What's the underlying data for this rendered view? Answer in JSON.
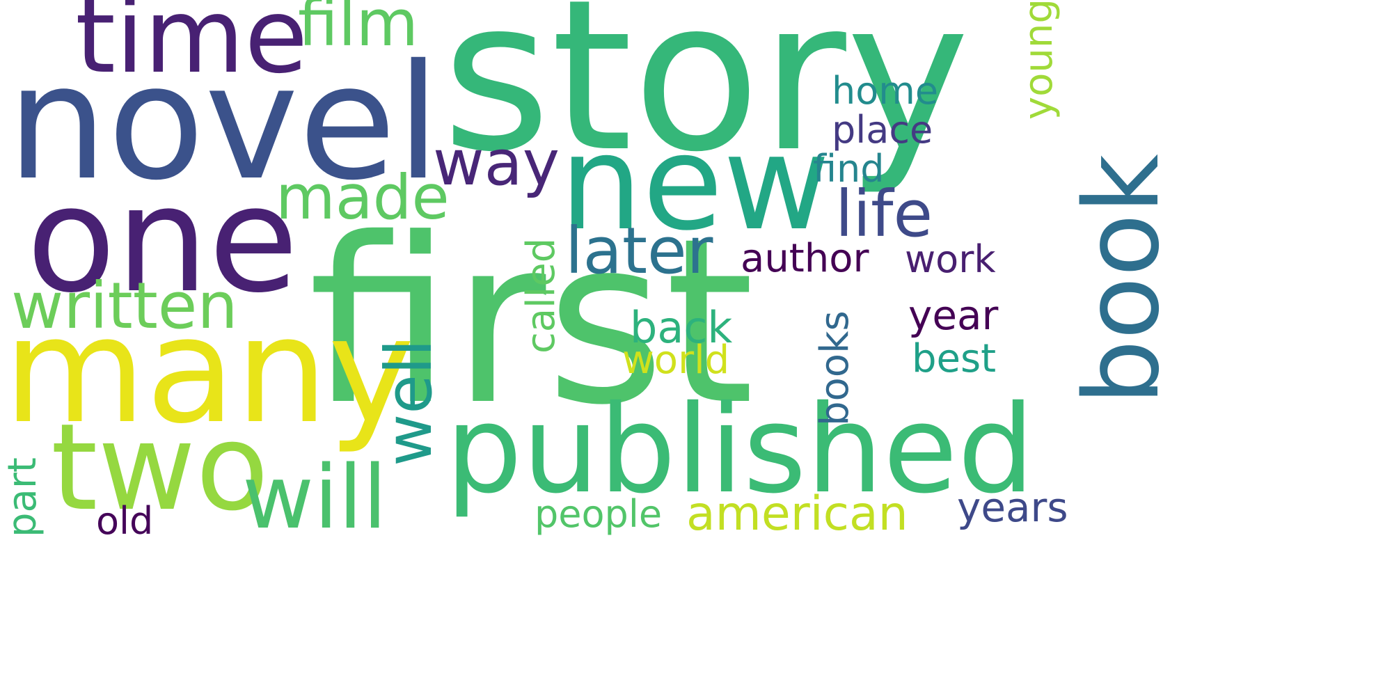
{
  "words": [
    {
      "id": "story",
      "text": "story",
      "color": "#35b779",
      "orientation": "horizontal"
    },
    {
      "id": "first",
      "text": "first",
      "color": "#4ec36b",
      "orientation": "horizontal"
    },
    {
      "id": "novel",
      "text": "novel",
      "color": "#3b528b",
      "orientation": "horizontal"
    },
    {
      "id": "one",
      "text": "one",
      "color": "#482173",
      "orientation": "horizontal"
    },
    {
      "id": "many",
      "text": "many",
      "color": "#e8e419",
      "orientation": "horizontal"
    },
    {
      "id": "new",
      "text": "new",
      "color": "#22a785",
      "orientation": "horizontal"
    },
    {
      "id": "published",
      "text": "published",
      "color": "#3bbb75",
      "orientation": "horizontal"
    },
    {
      "id": "time",
      "text": "time",
      "color": "#482173",
      "orientation": "horizontal"
    },
    {
      "id": "two",
      "text": "two",
      "color": "#95d840",
      "orientation": "horizontal"
    },
    {
      "id": "book",
      "text": "book",
      "color": "#2e6f8e",
      "orientation": "vertical"
    },
    {
      "id": "will",
      "text": "will",
      "color": "#4ac16d",
      "orientation": "horizontal"
    },
    {
      "id": "written",
      "text": "written",
      "color": "#6ccd5a",
      "orientation": "horizontal"
    },
    {
      "id": "well",
      "text": "well",
      "color": "#1f9a8a",
      "orientation": "vertical"
    },
    {
      "id": "film",
      "text": "film",
      "color": "#5ec962",
      "orientation": "horizontal"
    },
    {
      "id": "later",
      "text": "later",
      "color": "#2c728e",
      "orientation": "horizontal"
    },
    {
      "id": "life",
      "text": "life",
      "color": "#3e4a89",
      "orientation": "horizontal"
    },
    {
      "id": "way",
      "text": "way",
      "color": "#482677",
      "orientation": "horizontal"
    },
    {
      "id": "made",
      "text": "made",
      "color": "#5ec962",
      "orientation": "horizontal"
    },
    {
      "id": "american",
      "text": "american",
      "color": "#c2df23",
      "orientation": "horizontal"
    },
    {
      "id": "author",
      "text": "author",
      "color": "#440154",
      "orientation": "horizontal"
    },
    {
      "id": "work",
      "text": "work",
      "color": "#481f70",
      "orientation": "horizontal"
    },
    {
      "id": "home",
      "text": "home",
      "color": "#228c8d",
      "orientation": "horizontal"
    },
    {
      "id": "place",
      "text": "place",
      "color": "#443a83",
      "orientation": "horizontal"
    },
    {
      "id": "find",
      "text": "find",
      "color": "#25858e",
      "orientation": "horizontal"
    },
    {
      "id": "year",
      "text": "year",
      "color": "#440154",
      "orientation": "horizontal"
    },
    {
      "id": "back",
      "text": "back",
      "color": "#2db27d",
      "orientation": "horizontal"
    },
    {
      "id": "world",
      "text": "world",
      "color": "#d0e11c",
      "orientation": "horizontal"
    },
    {
      "id": "best",
      "text": "best",
      "color": "#1fa088",
      "orientation": "horizontal"
    },
    {
      "id": "called",
      "text": "called",
      "color": "#5ec962",
      "orientation": "vertical"
    },
    {
      "id": "books",
      "text": "books",
      "color": "#31688e",
      "orientation": "vertical"
    },
    {
      "id": "young",
      "text": "young",
      "color": "#a0da39",
      "orientation": "vertical"
    },
    {
      "id": "people",
      "text": "people",
      "color": "#52c569",
      "orientation": "horizontal"
    },
    {
      "id": "years",
      "text": "years",
      "color": "#3e4989",
      "orientation": "horizontal"
    },
    {
      "id": "part",
      "text": "part",
      "color": "#3bbb75",
      "orientation": "vertical"
    },
    {
      "id": "old",
      "text": "old",
      "color": "#450559",
      "orientation": "horizontal"
    }
  ]
}
